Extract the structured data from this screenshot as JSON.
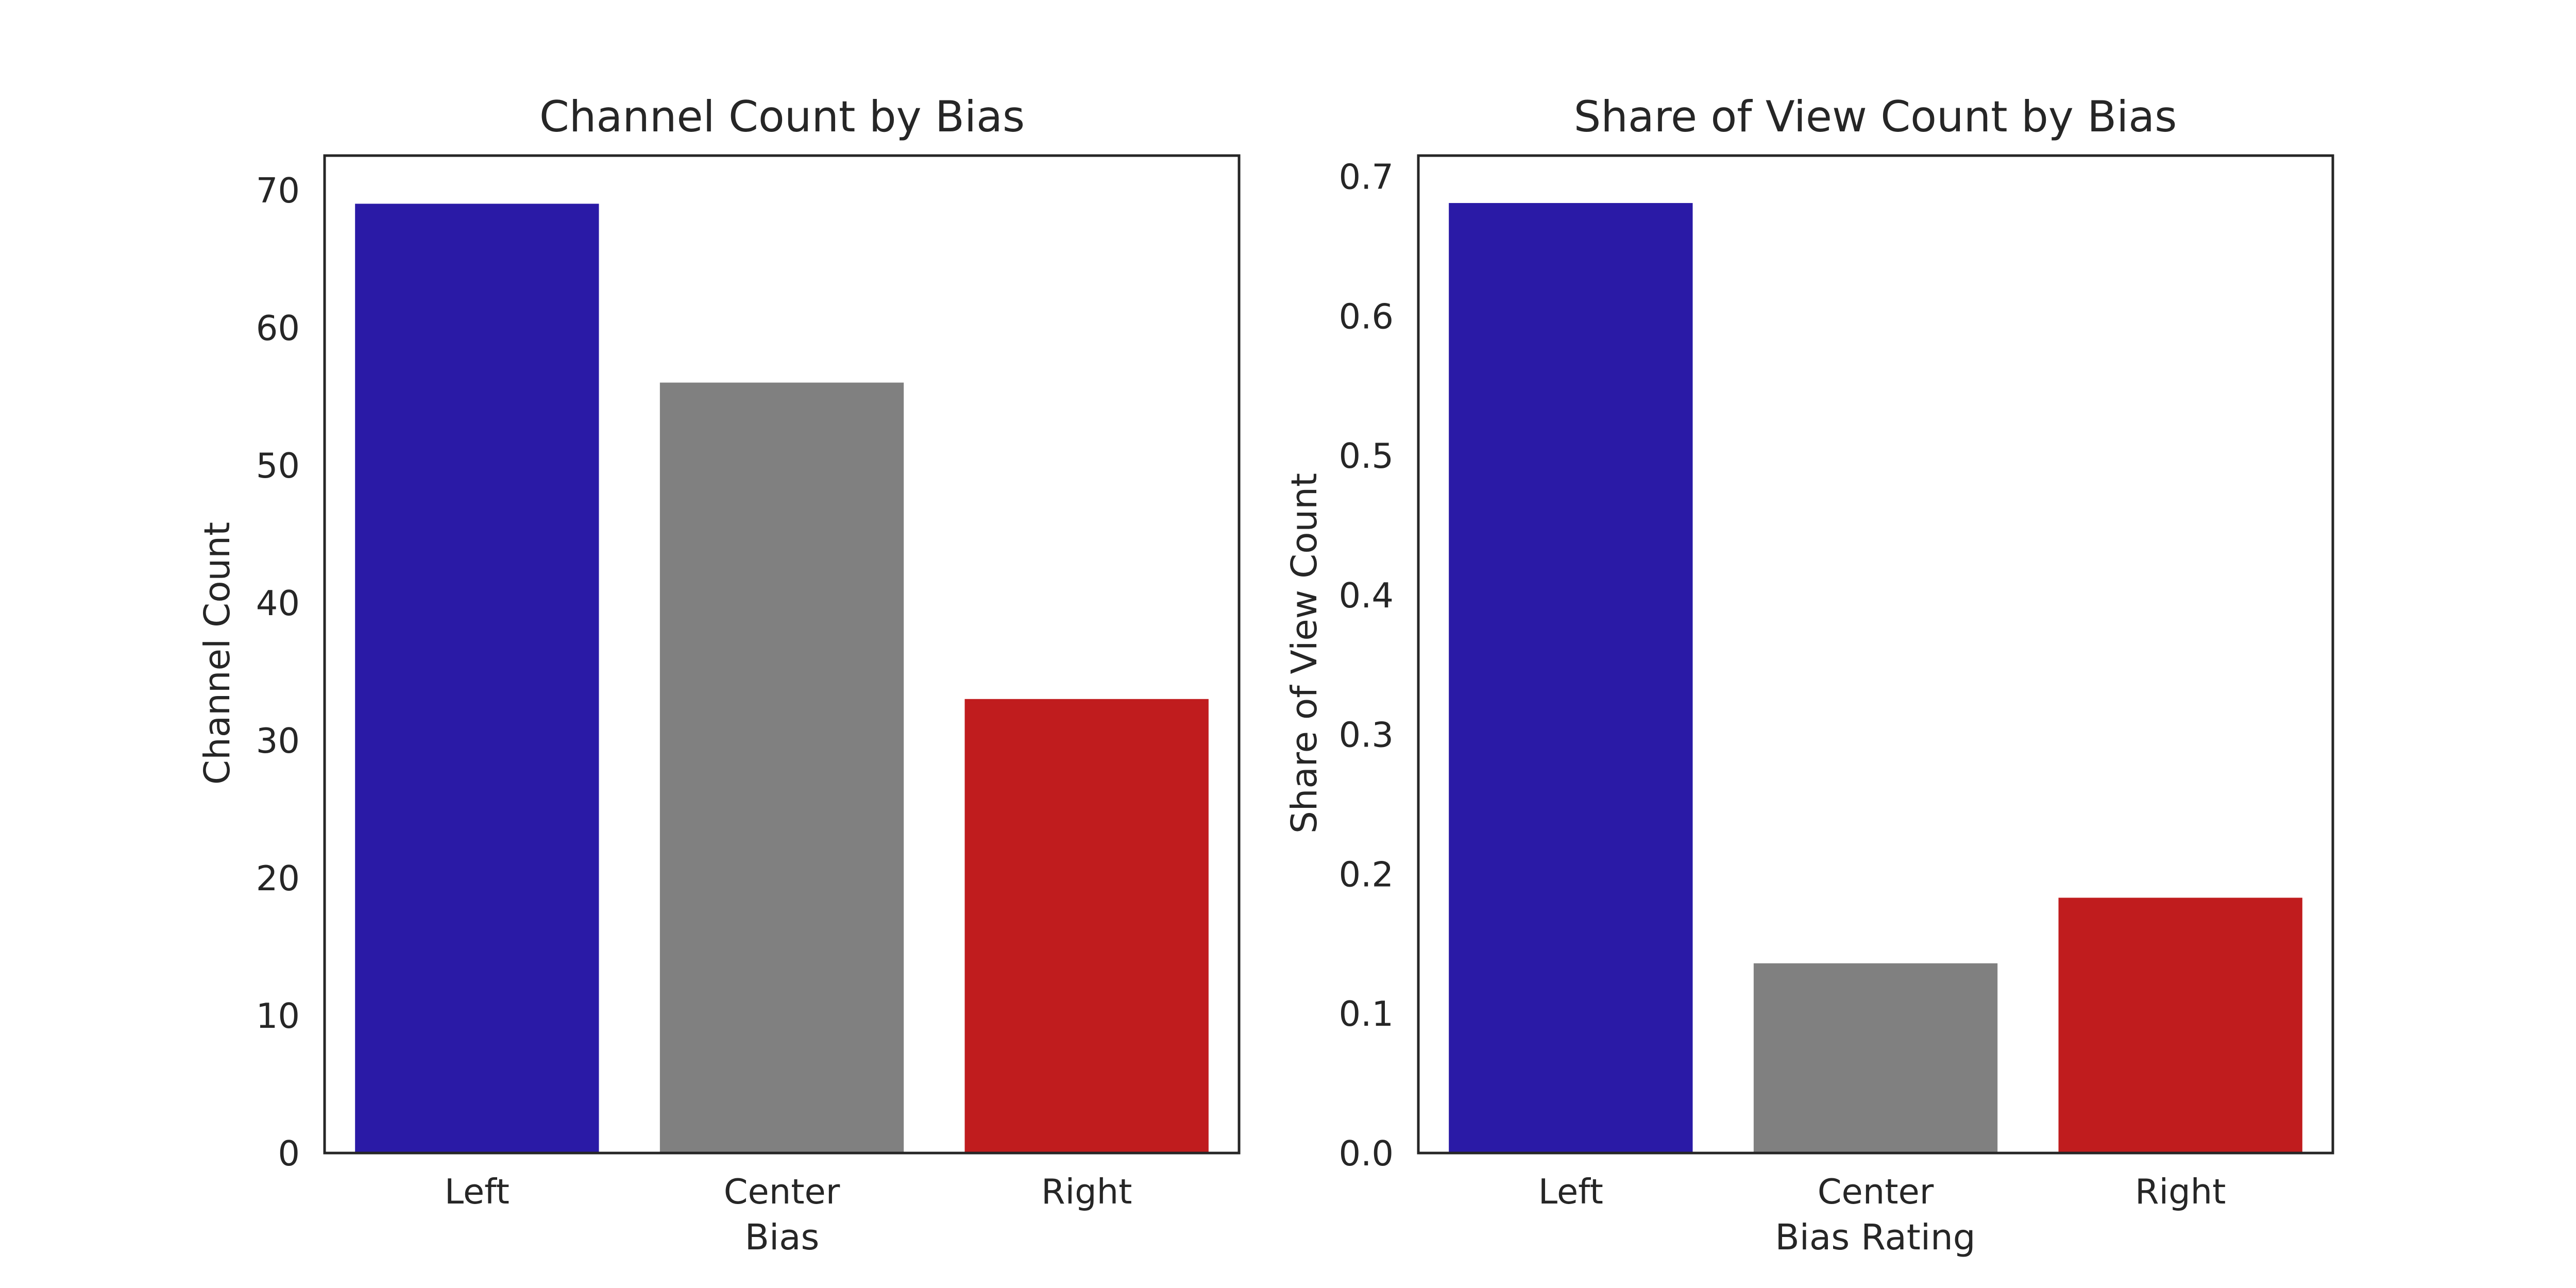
{
  "chart_data": [
    {
      "type": "bar",
      "title": "Channel Count by Bias",
      "xlabel": "Bias",
      "ylabel": "Channel Count",
      "categories": [
        "Left",
        "Center",
        "Right"
      ],
      "values": [
        69,
        56,
        33
      ],
      "colors": [
        "#2a1aa6",
        "#808080",
        "#c01c1e"
      ],
      "ylim": [
        0,
        72.5
      ],
      "yticks": [
        0,
        10,
        20,
        30,
        40,
        50,
        60,
        70
      ],
      "ytick_labels": [
        "0",
        "10",
        "20",
        "30",
        "40",
        "50",
        "60",
        "70"
      ],
      "grid": false,
      "legend": "none"
    },
    {
      "type": "bar",
      "title": "Share of View Count by Bias",
      "xlabel": "Bias Rating",
      "ylabel": "Share of View Count",
      "categories": [
        "Left",
        "Center",
        "Right"
      ],
      "values": [
        0.681,
        0.136,
        0.183
      ],
      "colors": [
        "#2a1aa6",
        "#808080",
        "#c01c1e"
      ],
      "ylim": [
        0,
        0.715
      ],
      "yticks": [
        0,
        0.1,
        0.2,
        0.3,
        0.4,
        0.5,
        0.6,
        0.7
      ],
      "ytick_labels": [
        "0.0",
        "0.1",
        "0.2",
        "0.3",
        "0.4",
        "0.5",
        "0.6",
        "0.7"
      ],
      "grid": false,
      "legend": "none"
    }
  ],
  "colors": {
    "background": "#ffffff",
    "axes_edge": "#262626",
    "text": "#262626"
  }
}
